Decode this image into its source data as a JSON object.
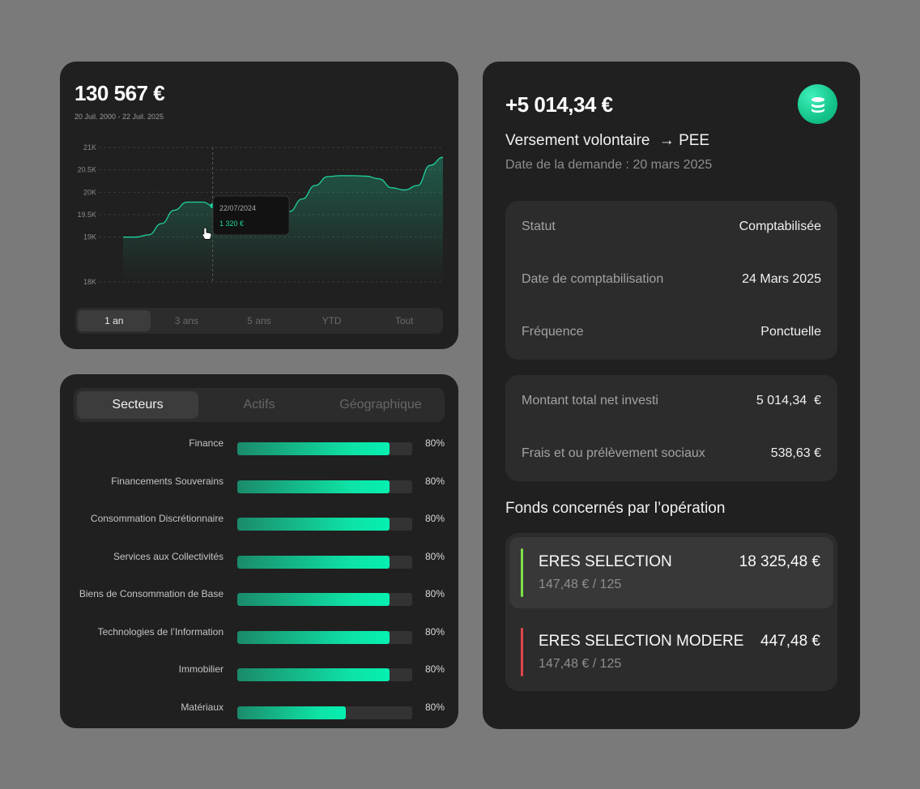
{
  "performance": {
    "total": "130 567 €",
    "period": "20 Juil. 2000 - 22 Juil. 2025",
    "tooltip": {
      "date": "22/07/2024",
      "value": "1 320 €"
    },
    "ranges": [
      "1 an",
      "3 ans",
      "5 ans",
      "YTD",
      "Tout"
    ],
    "active_range": "1 an",
    "colors": {
      "line": "#1fd1a0",
      "accent": "#19d9a0"
    }
  },
  "chart_data": {
    "type": "area",
    "title": "",
    "xlabel": "",
    "ylabel": "",
    "ylim": [
      18000,
      21000
    ],
    "y_ticks": [
      "18K",
      "19K",
      "19.5K",
      "20K",
      "20.5K",
      "21K"
    ],
    "y_tick_values": [
      18000,
      19000,
      19500,
      20000,
      20500,
      21000
    ],
    "x": [
      0,
      4,
      8,
      12,
      16,
      20,
      25,
      28,
      32,
      36,
      40,
      44,
      48,
      52,
      56,
      60,
      64,
      68,
      72,
      76,
      80,
      84,
      88,
      92,
      96,
      100
    ],
    "values": [
      19000,
      19000,
      19050,
      19300,
      19600,
      19780,
      19780,
      19700,
      19550,
      19550,
      19600,
      19650,
      19580,
      19570,
      19850,
      20150,
      20350,
      20370,
      20370,
      20360,
      20300,
      20100,
      20050,
      20150,
      20600,
      20780
    ],
    "grid": true,
    "highlight_index": 7
  },
  "sectors": {
    "tabs": [
      "Secteurs",
      "Actifs",
      "Géographique"
    ],
    "active_tab": "Secteurs",
    "items": [
      {
        "label": "Finance",
        "pct_text": "80%",
        "fill": 0.87
      },
      {
        "label": "Financements Souverains",
        "pct_text": "80%",
        "fill": 0.87
      },
      {
        "label": "Consommation Discrétionnaire",
        "pct_text": "80%",
        "fill": 0.87
      },
      {
        "label": "Services aux Collectivités",
        "pct_text": "80%",
        "fill": 0.87
      },
      {
        "label": "Biens de Consommation de Base",
        "pct_text": "80%",
        "fill": 0.87
      },
      {
        "label": "Technologies de l’Information",
        "pct_text": "80%",
        "fill": 0.87
      },
      {
        "label": "Immobilier",
        "pct_text": "80%",
        "fill": 0.87
      },
      {
        "label": "Matériaux",
        "pct_text": "80%",
        "fill": 0.62
      }
    ]
  },
  "operation": {
    "amount": "+5 014,34 €",
    "icon": "coins-icon",
    "type": "Versement volontaire",
    "target": "PEE",
    "date_label": "Date de la demande : 20 mars 2025",
    "details": [
      {
        "key": "Statut",
        "value": "Comptabilisée"
      },
      {
        "key": "Date de comptabilisation",
        "value": "24 Mars 2025"
      },
      {
        "key": "Fréquence",
        "value": "Ponctuelle"
      }
    ],
    "amounts": [
      {
        "key": "Montant total net investi",
        "value": "5 014,34  €"
      },
      {
        "key": "Frais et ou prélèvement sociaux",
        "value": "538,63 €"
      }
    ],
    "funds_title": "Fonds concernés par l’opération",
    "funds": [
      {
        "name": "ERES SELECTION",
        "amount": "18 325,48 €",
        "sub": "147,48 € / 125",
        "color": "#7ee04a"
      },
      {
        "name": "ERES SELECTION MODERE",
        "amount": "447,48 €",
        "sub": "147,48 € / 125",
        "color": "#e0474a"
      }
    ]
  }
}
